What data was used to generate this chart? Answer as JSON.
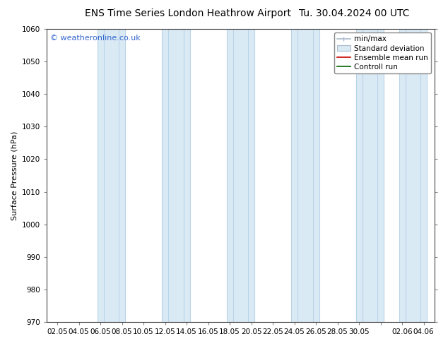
{
  "title_left": "ENS Time Series London Heathrow Airport",
  "title_right": "Tu. 30.04.2024 00 UTC",
  "ylabel": "Surface Pressure (hPa)",
  "ylim": [
    970,
    1060
  ],
  "yticks": [
    970,
    980,
    990,
    1000,
    1010,
    1020,
    1030,
    1040,
    1050,
    1060
  ],
  "xlabel_ticks": [
    "02.05",
    "04.05",
    "06.05",
    "08.05",
    "10.05",
    "12.05",
    "14.05",
    "16.05",
    "18.05",
    "20.05",
    "22.05",
    "24.05",
    "26.05",
    "28.05",
    "30.05",
    "",
    "02.06",
    "04.06"
  ],
  "num_xticks": 18,
  "shaded_band_color": "#daeaf5",
  "shaded_band_edge_color": "#b8d4e8",
  "watermark": "© weatheronline.co.uk",
  "watermark_color": "#3366cc",
  "legend_labels": [
    "min/max",
    "Standard deviation",
    "Ensemble mean run",
    "Controll run"
  ],
  "legend_line_color": "#aabbcc",
  "legend_std_color": "#daeaf5",
  "legend_std_edge": "#aabbcc",
  "legend_ens_color": "#cc0000",
  "legend_ctrl_color": "#006600",
  "bg_color": "#ffffff",
  "plot_bg_color": "#ffffff",
  "title_fontsize": 10,
  "ylabel_fontsize": 8,
  "tick_fontsize": 7.5,
  "legend_fontsize": 7.5
}
